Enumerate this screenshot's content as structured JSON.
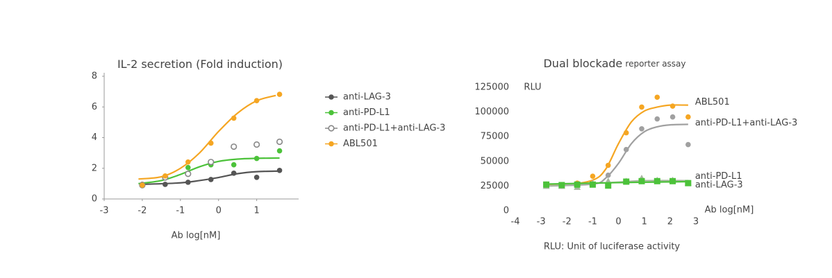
{
  "chart_data": [
    {
      "type": "scatter",
      "title": "IL-2 secretion (Fold induction)",
      "x_label": "Ab log[nM]",
      "xlim": [
        -3,
        2.1
      ],
      "xticks": [
        -3,
        -2,
        -1,
        0,
        1
      ],
      "ylim": [
        0,
        8
      ],
      "yticks": [
        0,
        2,
        4,
        6,
        8
      ],
      "legend": "right",
      "x": [
        -2,
        -1.4,
        -0.8,
        -0.2,
        0.4,
        1,
        1.6
      ],
      "series": [
        {
          "name": "anti-LAG-3",
          "color": "#555555",
          "marker": "circle",
          "values": [
            0.95,
            0.95,
            1.09,
            1.27,
            1.68,
            1.41,
            1.86
          ],
          "fit": {
            "x": [
              -2,
              -1,
              -0.5,
              0,
              0.5,
              1,
              1.6
            ],
            "values": [
              0.95,
              1.05,
              1.2,
              1.4,
              1.65,
              1.78,
              1.82
            ]
          }
        },
        {
          "name": "anti-PD-L1",
          "color": "#4cc23a",
          "marker": "circle",
          "values": [
            0.9,
            1.4,
            2.05,
            2.23,
            2.23,
            2.64,
            3.14
          ],
          "fit": {
            "x": [
              -2.1,
              -1.5,
              -1,
              -0.5,
              0,
              0.5,
              1,
              1.6
            ],
            "values": [
              1.0,
              1.2,
              1.6,
              2.1,
              2.45,
              2.6,
              2.65,
              2.67
            ]
          }
        },
        {
          "name": "anti-PD-L1+anti-LAG-3",
          "color": "#888888",
          "marker": "open-circle",
          "values": [
            0.9,
            1.4,
            1.64,
            2.41,
            3.41,
            3.55,
            3.73
          ]
        },
        {
          "name": "ABL501",
          "color": "#f5a623",
          "marker": "circle",
          "values": [
            0.9,
            1.5,
            2.41,
            3.64,
            5.27,
            6.41,
            6.82
          ],
          "fit": {
            "x": [
              -2.1,
              -1.5,
              -1,
              -0.5,
              0,
              0.5,
              1,
              1.5
            ],
            "values": [
              1.3,
              1.45,
              2.0,
              3.0,
              4.4,
              5.6,
              6.4,
              6.75
            ]
          }
        }
      ]
    },
    {
      "type": "scatter",
      "title": "Dual blockade",
      "subtitle": "reporter assay",
      "y_label": "RLU",
      "x_label": "Ab log[nM]",
      "note": "RLU: Unit of luciferase activity",
      "xlim": [
        -4,
        3
      ],
      "xticks": [
        -4,
        -3,
        -2,
        -1,
        0,
        1,
        2,
        3
      ],
      "ylim": [
        0,
        125000
      ],
      "yticks": [
        0,
        25000,
        50000,
        75000,
        100000,
        125000
      ],
      "legend": "line-end",
      "x": [
        -2.8,
        -2.2,
        -1.6,
        -1,
        -0.4,
        0.3,
        0.9,
        1.5,
        2.1,
        2.7
      ],
      "series": [
        {
          "name": "ABL501",
          "color": "#f5a623",
          "marker": "circle",
          "values": [
            27000,
            26500,
            28000,
            35000,
            46000,
            79000,
            105000,
            115000,
            106000,
            95000
          ],
          "fit": {
            "x": [
              -2.9,
              -2,
              -1,
              -0.5,
              0,
              0.5,
              1,
              1.5,
              2,
              2.7
            ],
            "values": [
              26000,
              26500,
              31000,
              42000,
              68000,
              90000,
              101000,
              105000,
              107000,
              107000
            ]
          }
        },
        {
          "name": "anti-PD-L1+anti-LAG-3",
          "color": "#a0a0a0",
          "marker": "circle",
          "values": [
            25000,
            25000,
            25500,
            27000,
            36000,
            62000,
            83000,
            93000,
            95000,
            67000
          ],
          "fit": {
            "x": [
              -2.9,
              -1,
              -0.5,
              0,
              0.5,
              1,
              1.5,
              2,
              2.7
            ],
            "values": [
              25000,
              27000,
              33000,
              48000,
              68000,
              80000,
              85000,
              87000,
              87500
            ]
          }
        },
        {
          "name": "anti-PD-L1",
          "color": "#a8b8a0",
          "marker": "triangle",
          "values": [
            25000,
            25000,
            24000,
            28000,
            30000,
            30000,
            33000,
            31000,
            31000,
            28000
          ],
          "fit": {
            "x": [
              -2.9,
              0,
              1,
              2.7
            ],
            "values": [
              25000,
              29000,
              30500,
              30500
            ]
          }
        },
        {
          "name": "anti-LAG-3",
          "color": "#4cc23a",
          "marker": "square",
          "values": [
            26500,
            26000,
            26500,
            26500,
            25500,
            29500,
            30000,
            30000,
            30000,
            28000
          ],
          "fit": {
            "x": [
              -2.9,
              0,
              2.7
            ],
            "values": [
              27000,
              28500,
              29500
            ]
          }
        }
      ]
    }
  ]
}
